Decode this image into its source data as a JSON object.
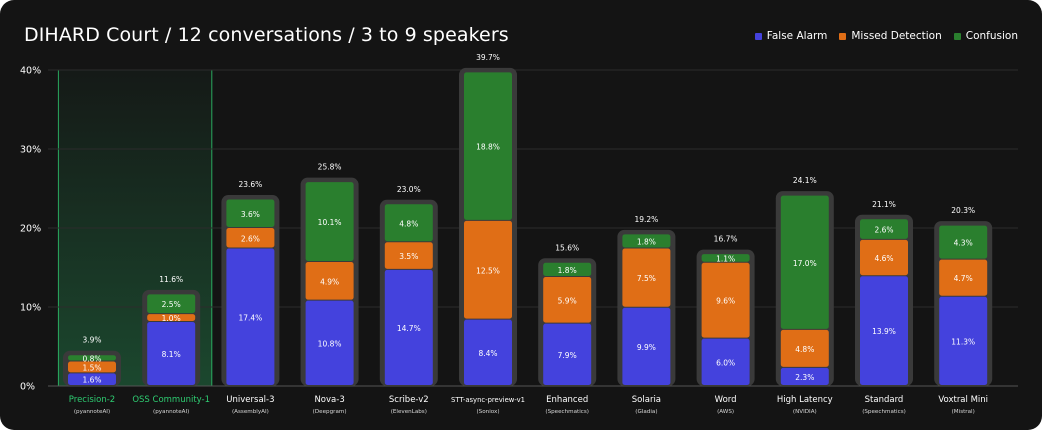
{
  "chart_data": {
    "type": "bar",
    "stacked": true,
    "title": "DIHARD Court / 12 conversations / 3 to 9 speakers",
    "ylim": [
      0,
      40
    ],
    "yticks": [
      "0%",
      "10%",
      "20%",
      "30%",
      "40%"
    ],
    "ytick_values": [
      0,
      10,
      20,
      30,
      40
    ],
    "legend": [
      {
        "name": "False Alarm",
        "color": "#4442dd"
      },
      {
        "name": "Missed Detection",
        "color": "#e06e16"
      },
      {
        "name": "Confusion",
        "color": "#2a7f2e"
      }
    ],
    "categories": [
      {
        "name": "Precision-2",
        "vendor": "(pyannoteAI)",
        "highlight": true
      },
      {
        "name": "OSS Community-1",
        "vendor": "(pyannoteAI)",
        "highlight": true
      },
      {
        "name": "Universal-3",
        "vendor": "(AssemblyAI)",
        "highlight": false
      },
      {
        "name": "Nova-3",
        "vendor": "(Deepgram)",
        "highlight": false
      },
      {
        "name": "Scribe-v2",
        "vendor": "(ElevenLabs)",
        "highlight": false
      },
      {
        "name": "STT-async-preview-v1",
        "vendor": "(Soniox)",
        "highlight": false
      },
      {
        "name": "Enhanced",
        "vendor": "(Speechmatics)",
        "highlight": false
      },
      {
        "name": "Solaria",
        "vendor": "(Gladia)",
        "highlight": false
      },
      {
        "name": "Word",
        "vendor": "(AWS)",
        "highlight": false
      },
      {
        "name": "High Latency",
        "vendor": "(NVIDIA)",
        "highlight": false
      },
      {
        "name": "Standard",
        "vendor": "(Speechmatics)",
        "highlight": false
      },
      {
        "name": "Voxtral Mini",
        "vendor": "(Mistral)",
        "highlight": false
      }
    ],
    "series": [
      {
        "name": "False Alarm",
        "values": [
          1.6,
          8.1,
          17.4,
          10.8,
          14.7,
          8.4,
          7.9,
          9.9,
          6.0,
          2.3,
          13.9,
          11.3
        ],
        "labels": [
          "1.6%",
          "8.1%",
          "17.4%",
          "10.8%",
          "14.7%",
          "8.4%",
          "7.9%",
          "9.9%",
          "6.0%",
          "2.3%",
          "13.9%",
          "11.3%"
        ]
      },
      {
        "name": "Missed Detection",
        "values": [
          1.5,
          1.0,
          2.6,
          4.9,
          3.5,
          12.5,
          5.9,
          7.5,
          9.6,
          4.8,
          4.6,
          4.7
        ],
        "labels": [
          "1.5%",
          "1.0%",
          "2.6%",
          "4.9%",
          "3.5%",
          "12.5%",
          "5.9%",
          "7.5%",
          "9.6%",
          "4.8%",
          "4.6%",
          "4.7%"
        ]
      },
      {
        "name": "Confusion",
        "values": [
          0.8,
          2.5,
          3.6,
          10.1,
          4.8,
          18.8,
          1.8,
          1.8,
          1.1,
          17.0,
          2.6,
          4.3
        ],
        "labels": [
          "0.8%",
          "2.5%",
          "3.6%",
          "10.1%",
          "4.8%",
          "18.8%",
          "1.8%",
          "1.8%",
          "1.1%",
          "17.0%",
          "2.6%",
          "4.3%"
        ]
      }
    ],
    "totals": [
      3.9,
      11.6,
      23.6,
      25.8,
      23.0,
      39.7,
      15.6,
      19.2,
      16.7,
      24.1,
      21.1,
      20.3
    ],
    "total_labels": [
      "3.9%",
      "11.6%",
      "23.6%",
      "25.8%",
      "23.0%",
      "39.7%",
      "15.6%",
      "19.2%",
      "16.7%",
      "24.1%",
      "21.1%",
      "20.3%"
    ],
    "highlight_color": "#2ecc71",
    "grid": true
  }
}
